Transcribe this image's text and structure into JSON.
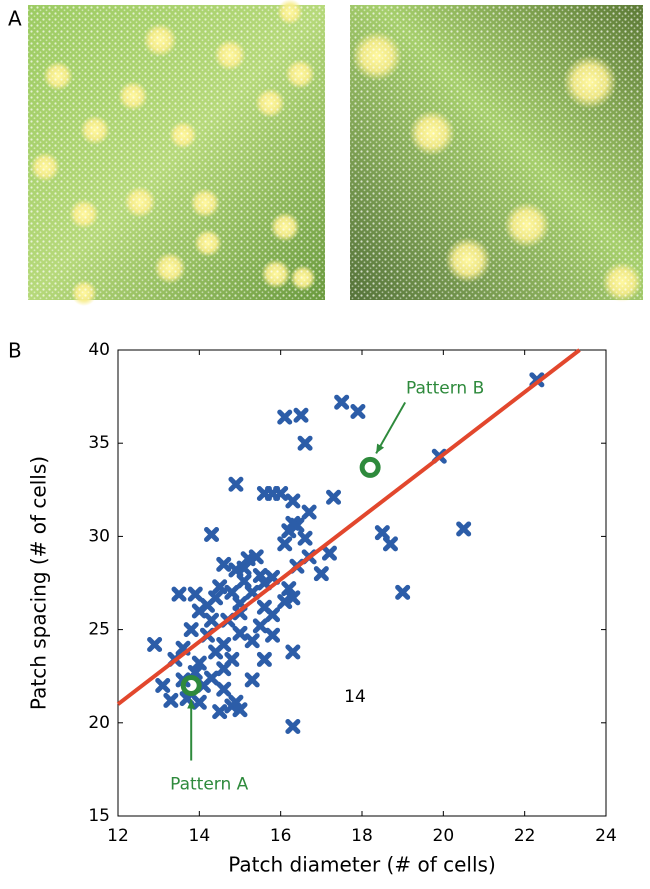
{
  "panel_labels": [
    "A",
    "B"
  ],
  "chart_data": {
    "type": "scatter",
    "xlabel": "Patch diameter (# of cells)",
    "ylabel": "Patch spacing (# of cells)",
    "xlim": [
      12,
      24
    ],
    "ylim": [
      15,
      40
    ],
    "xticks": [
      12,
      14,
      16,
      18,
      20,
      22,
      24
    ],
    "yticks": [
      15,
      20,
      25,
      30,
      35,
      40
    ],
    "color": "#2c5da8",
    "x": [
      22.3,
      17.5,
      17.9,
      16.1,
      16.5,
      16.6,
      19.9,
      14.9,
      15.6,
      15.8,
      16,
      16.3,
      17.3,
      16.7,
      20.5,
      18.5,
      18.7,
      16.2,
      16.3,
      16.4,
      16.1,
      16.6,
      17.2,
      16.7,
      14.3,
      15.2,
      15.4,
      15.1,
      14.9,
      19,
      16.2,
      16.3,
      15.8,
      15.6,
      13.5,
      13.9,
      14.5,
      14.8,
      15,
      14.2,
      14,
      15.6,
      16.1,
      14.3,
      14.7,
      15.5,
      13.8,
      14.2,
      15,
      15.3,
      15.8,
      12.9,
      13.6,
      14.4,
      14.8,
      15.6,
      16.3,
      13.4,
      14,
      14.6,
      13.9,
      14.3,
      14.1,
      15.3,
      13.1,
      13.6,
      14.6,
      13.7,
      13.3,
      14,
      14.5,
      14.8,
      14.9,
      15,
      16.3,
      14.4,
      15.1,
      15.3,
      14.6,
      15.5,
      15,
      14.6,
      15.8,
      17,
      16.4
    ],
    "y": [
      38.4,
      37.2,
      36.7,
      36.4,
      36.5,
      35,
      34.3,
      32.8,
      32.3,
      32.3,
      32.3,
      31.9,
      32.1,
      31.3,
      30.4,
      30.2,
      29.6,
      30.3,
      30.7,
      30.6,
      29.6,
      29.9,
      29.1,
      28.9,
      30.1,
      28.8,
      28.9,
      28.3,
      28.2,
      27,
      27.2,
      26.7,
      27.8,
      27.5,
      26.9,
      26.9,
      27.3,
      27,
      26.4,
      26.3,
      26,
      26.2,
      26.5,
      25.5,
      25.5,
      25.2,
      25,
      24.7,
      24.8,
      24.4,
      24.7,
      24.2,
      24,
      23.8,
      23.4,
      23.4,
      23.8,
      23.4,
      23.2,
      22.9,
      22.7,
      22.4,
      22,
      22.3,
      22,
      22.3,
      21.8,
      21.3,
      21.2,
      21.1,
      20.6,
      20.9,
      21.1,
      20.7,
      19.8,
      26.7,
      27.6,
      27,
      28.5,
      27.9,
      25.9,
      24.2,
      25.8,
      28,
      28.4
    ],
    "fit": {
      "x": [
        12,
        23.35
      ],
      "y": [
        21,
        40
      ],
      "color": "#e2472d"
    },
    "annotations": [
      {
        "text": "Pattern A",
        "x": 13.8,
        "y": 22,
        "color": "#2e8a3c"
      },
      {
        "text": "Pattern B",
        "x": 18.2,
        "y": 33.7,
        "color": "#2e8a3c"
      }
    ],
    "note": "14"
  }
}
